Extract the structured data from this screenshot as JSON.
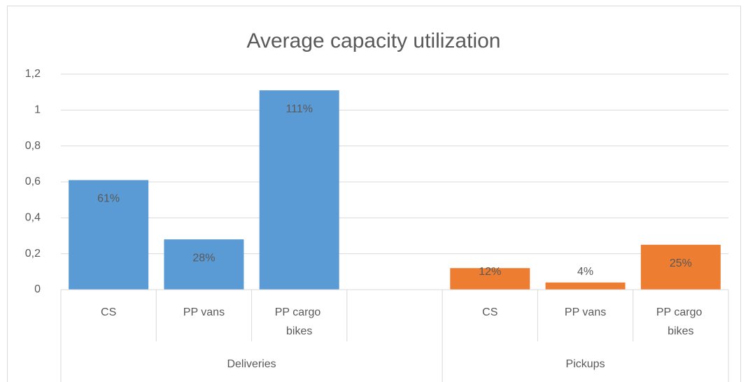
{
  "chart_data": {
    "type": "bar",
    "title": "Average capacity utilization",
    "categories": [
      [
        "Deliveries",
        "CS"
      ],
      [
        "Deliveries",
        "PP vans"
      ],
      [
        "Deliveries",
        "PP cargo bikes"
      ],
      [
        "Deliveries",
        null
      ],
      [
        "Pickups",
        "CS"
      ],
      [
        "Pickups",
        "PP vans"
      ],
      [
        "Pickups",
        "PP cargo bikes"
      ]
    ],
    "values": [
      0.61,
      0.28,
      1.11,
      null,
      0.12,
      0.04,
      0.25
    ],
    "value_labels": [
      "61%",
      "28%",
      "111%",
      null,
      "12%",
      "4%",
      "25%"
    ],
    "colors": [
      "#5b9bd5",
      "#5b9bd5",
      "#5b9bd5",
      null,
      "#ed7d31",
      "#ed7d31",
      "#ed7d31"
    ],
    "ylim": [
      0,
      1.2
    ],
    "yticks": [
      0,
      {
        "value": 0.2,
        "label": "0,2"
      },
      {
        "value": 0.4,
        "label": "0,4"
      },
      {
        "value": 0.6,
        "label": "0,6"
      },
      {
        "value": 0.8,
        "label": "0,8"
      },
      1,
      {
        "value": 1.2,
        "label": "1,2"
      }
    ],
    "grid": true
  }
}
